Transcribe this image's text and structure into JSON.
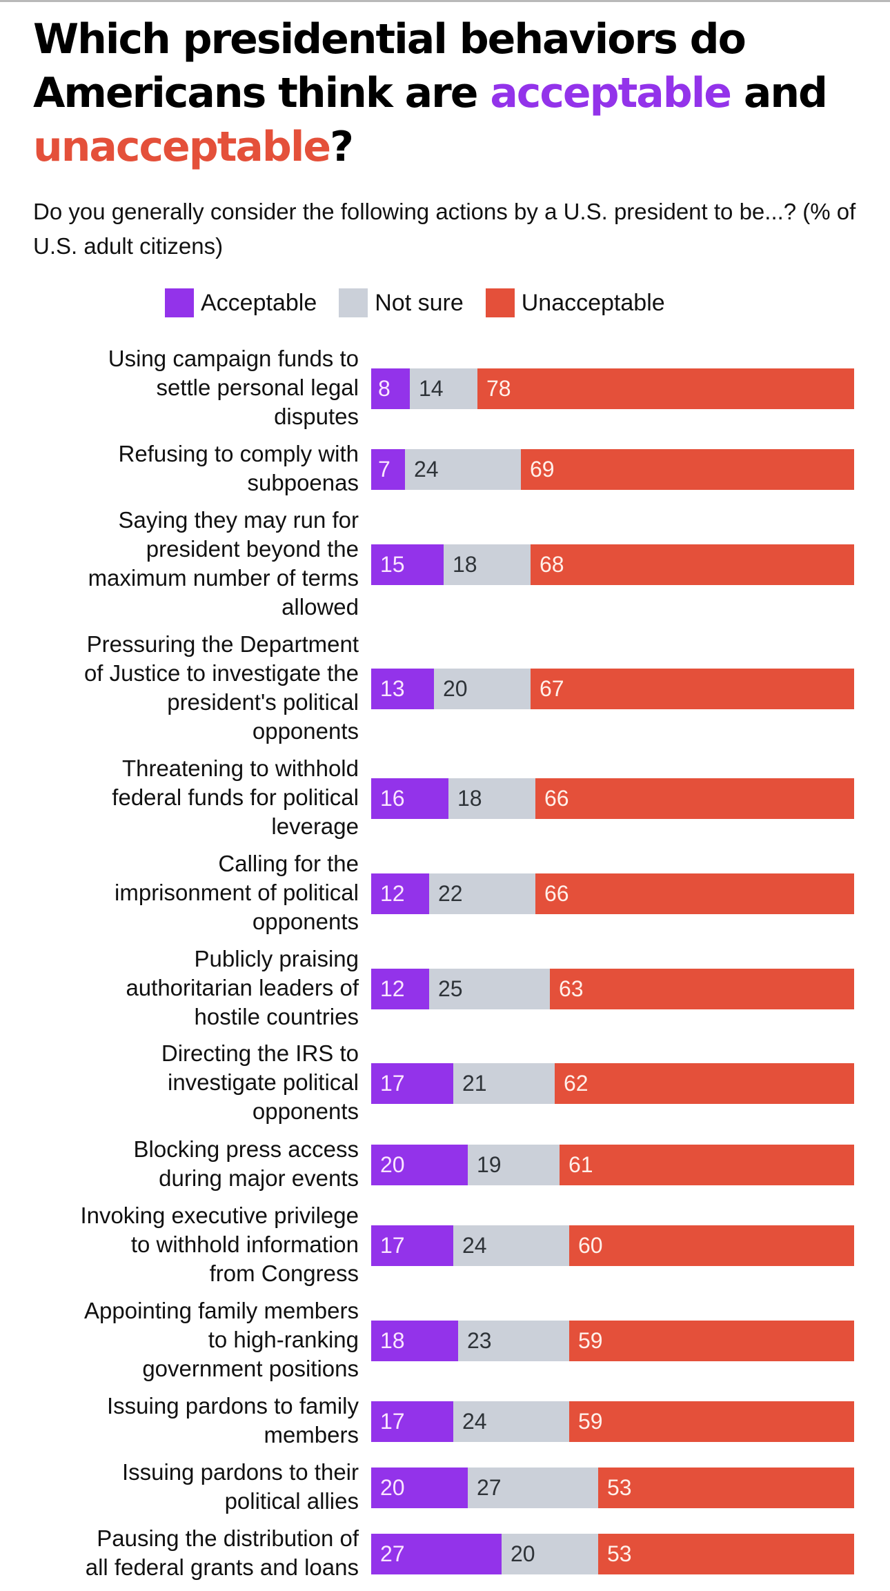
{
  "title": {
    "part1": "Which presidential behaviors do Americans think are ",
    "acceptable": "acceptable",
    "part2": " and ",
    "unacceptable": "unacceptable",
    "part3": "?"
  },
  "subtitle": "Do you generally consider the following actions by a U.S. president to be...? (% of U.S. adult citizens)",
  "colors": {
    "acceptable": "#9333ea",
    "not_sure": "#cbd0d9",
    "unacceptable": "#e4503a"
  },
  "legend": [
    {
      "key": "acceptable",
      "label": "Acceptable"
    },
    {
      "key": "not_sure",
      "label": "Not sure"
    },
    {
      "key": "unacceptable",
      "label": "Unacceptable"
    }
  ],
  "chart_data": {
    "type": "bar",
    "orientation": "horizontal",
    "stacked": true,
    "title": "Which presidential behaviors do Americans think are acceptable and unacceptable?",
    "subtitle": "Do you generally consider the following actions by a U.S. president to be...? (% of U.S. adult citizens)",
    "xlabel": "",
    "ylabel": "",
    "xlim": [
      0,
      100
    ],
    "grid": false,
    "legend_position": "top-center",
    "categories": [
      "Using campaign funds to settle personal legal disputes",
      "Refusing to comply with subpoenas",
      "Saying they may run for president beyond the maximum number of terms allowed",
      "Pressuring the Department of Justice to investigate the president's political opponents",
      "Threatening to withhold federal funds for political leverage",
      "Calling for the imprisonment of political opponents",
      "Publicly praising authoritarian leaders of hostile countries",
      "Directing the IRS to investigate political opponents",
      "Blocking press access during major events",
      "Invoking executive privilege to withhold information from Congress",
      "Appointing family members to high-ranking government positions",
      "Issuing pardons to family members",
      "Issuing pardons to their political allies",
      "Pausing the distribution of all federal grants and loans"
    ],
    "series": [
      {
        "name": "Acceptable",
        "values": [
          8,
          7,
          15,
          13,
          16,
          12,
          12,
          17,
          20,
          17,
          18,
          17,
          20,
          27
        ]
      },
      {
        "name": "Not sure",
        "values": [
          14,
          24,
          18,
          20,
          18,
          22,
          25,
          21,
          19,
          24,
          23,
          24,
          27,
          20
        ]
      },
      {
        "name": "Unacceptable",
        "values": [
          78,
          69,
          68,
          67,
          66,
          66,
          63,
          62,
          61,
          60,
          59,
          59,
          53,
          53
        ]
      }
    ]
  }
}
